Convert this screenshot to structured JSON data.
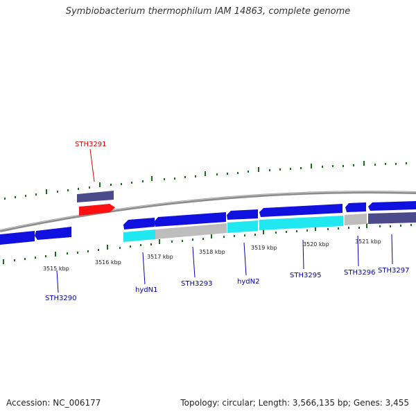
{
  "title": "Symbiobacterium thermophilum IAM 14863, complete genome",
  "footer": {
    "accession": "Accession: NC_006177",
    "topology": "Topology: circular; Length: 3,566,135 bp; Genes: 3,455"
  },
  "colors": {
    "backbone": "#8c8c8c",
    "gene_forward": "#1010e0",
    "gene_dark": "#4b4b8c",
    "gene_red": "#ff1010",
    "cyan": "#20e8f0",
    "grey_block": "#bdbdbd",
    "tick": "#1a6e1a",
    "label_blue": "#0000aa",
    "label_red": "#dd0000"
  },
  "kbp_labels": [
    "3515 kbp",
    "3516 kbp",
    "3517 kbp",
    "3518 kbp",
    "3519 kbp",
    "3520 kbp",
    "3521 kbp"
  ],
  "gene_labels": [
    "STH3291",
    "STH3290",
    "hydN1",
    "STH3293",
    "hydN2",
    "STH3295",
    "STH3296",
    "STH3297"
  ]
}
